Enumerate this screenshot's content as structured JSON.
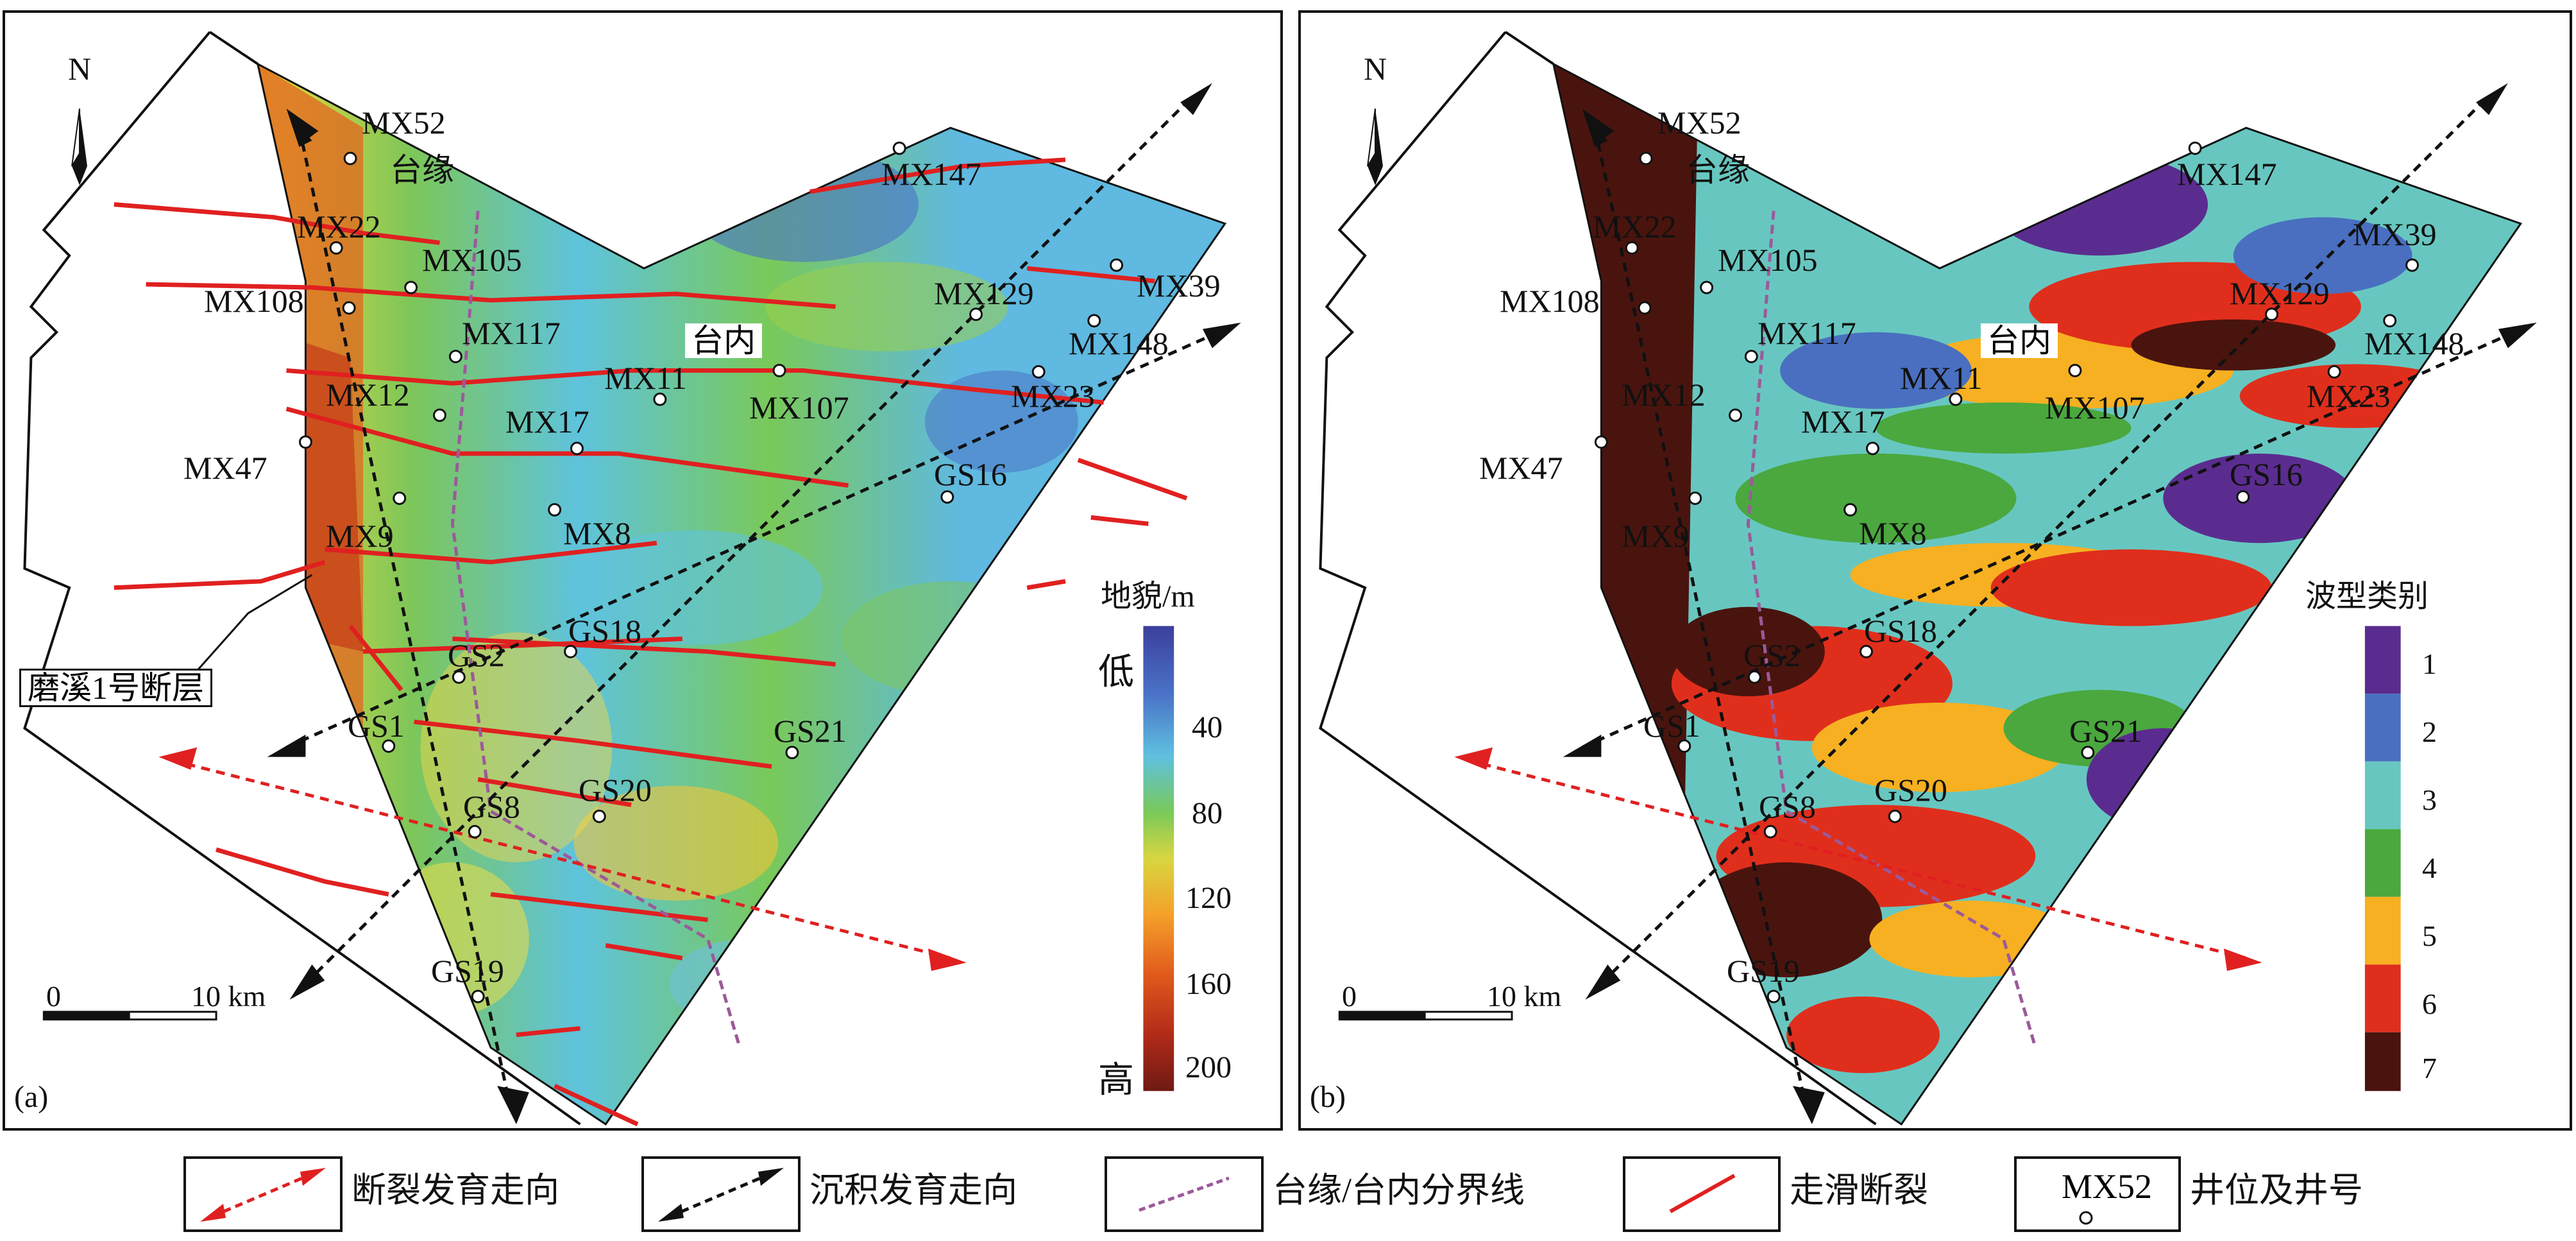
{
  "panels": {
    "a": {
      "letter": "(a)",
      "north": "N",
      "scale_zero": "0",
      "scale_end": "10 km",
      "zone_edge": "台缘",
      "zone_inner": "台内",
      "fault_name": "磨溪1号断层",
      "ramp": {
        "title": "地貌/m",
        "low": "低",
        "high": "高",
        "ticks": [
          "40",
          "80",
          "120",
          "160",
          "200"
        ],
        "colors": [
          "#3b3f9c",
          "#4a74c8",
          "#5fc0df",
          "#79c95a",
          "#d8d640",
          "#f4a12a",
          "#e05a1c",
          "#b12a18",
          "#6e1a14"
        ]
      }
    },
    "b": {
      "letter": "(b)",
      "north": "N",
      "scale_zero": "0",
      "scale_end": "10 km",
      "zone_edge": "台缘",
      "zone_inner": "台内",
      "classes": {
        "title": "波型类别",
        "items": [
          {
            "label": "1",
            "color": "#5b2c8f"
          },
          {
            "label": "2",
            "color": "#4a6fc0"
          },
          {
            "label": "3",
            "color": "#67c7c0"
          },
          {
            "label": "4",
            "color": "#4aa83e"
          },
          {
            "label": "5",
            "color": "#f7b021"
          },
          {
            "label": "6",
            "color": "#e02e1c"
          },
          {
            "label": "7",
            "color": "#4a140e"
          }
        ]
      }
    }
  },
  "wells": [
    "MX52",
    "MX22",
    "MX105",
    "MX108",
    "MX117",
    "MX12",
    "MX47",
    "MX9",
    "MX17",
    "MX11",
    "MX8",
    "MX147",
    "MX129",
    "MX39",
    "MX148",
    "MX107",
    "MX23",
    "GS16",
    "GS2",
    "GS18",
    "GS1",
    "GS8",
    "GS20",
    "GS21",
    "GS19"
  ],
  "legend": {
    "fault_trend": "断裂发育走向",
    "sediment_trend": "沉积发育走向",
    "boundary": "台缘/台内分界线",
    "strike_slip": "走滑断裂",
    "well": "井位及井号",
    "well_sample": "MX52"
  }
}
